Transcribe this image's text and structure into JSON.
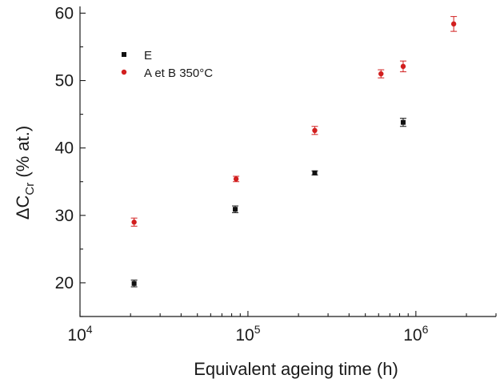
{
  "chart_data": {
    "type": "scatter",
    "title": "",
    "xlabel": "Equivalent ageing time (h)",
    "ylabel": {
      "prefix": "ΔC",
      "subscript": "Cr",
      "suffix": " (% at.)"
    },
    "x_scale": "log",
    "xlim": [
      10000,
      3000000
    ],
    "ylim": [
      15,
      61
    ],
    "x_ticks": [
      {
        "value": 10000,
        "base": "10",
        "exponent": "4"
      },
      {
        "value": 100000,
        "base": "10",
        "exponent": "5"
      },
      {
        "value": 1000000,
        "base": "10",
        "exponent": "6"
      }
    ],
    "y_ticks": [
      {
        "value": 20,
        "label": "20"
      },
      {
        "value": 30,
        "label": "30"
      },
      {
        "value": 40,
        "label": "40"
      },
      {
        "value": 50,
        "label": "50"
      },
      {
        "value": 60,
        "label": "60"
      }
    ],
    "grid": false,
    "legend_position": "top-left",
    "series": [
      {
        "name": "E",
        "color": "#111111",
        "marker": "square",
        "points": [
          {
            "x": 21000,
            "y": 19.9,
            "err": 0.5
          },
          {
            "x": 84000,
            "y": 30.9,
            "err": 0.5
          },
          {
            "x": 250000,
            "y": 36.3,
            "err": 0.3
          },
          {
            "x": 840000,
            "y": 43.8,
            "err": 0.6
          }
        ]
      },
      {
        "name": "A et B 350°C",
        "color": "#d21f1f",
        "marker": "circle",
        "points": [
          {
            "x": 21000,
            "y": 29.0,
            "err": 0.6
          },
          {
            "x": 85000,
            "y": 35.4,
            "err": 0.4
          },
          {
            "x": 250000,
            "y": 42.6,
            "err": 0.6
          },
          {
            "x": 620000,
            "y": 51.0,
            "err": 0.6
          },
          {
            "x": 840000,
            "y": 52.1,
            "err": 0.8
          },
          {
            "x": 1680000,
            "y": 58.4,
            "err": 1.1
          }
        ]
      }
    ]
  }
}
